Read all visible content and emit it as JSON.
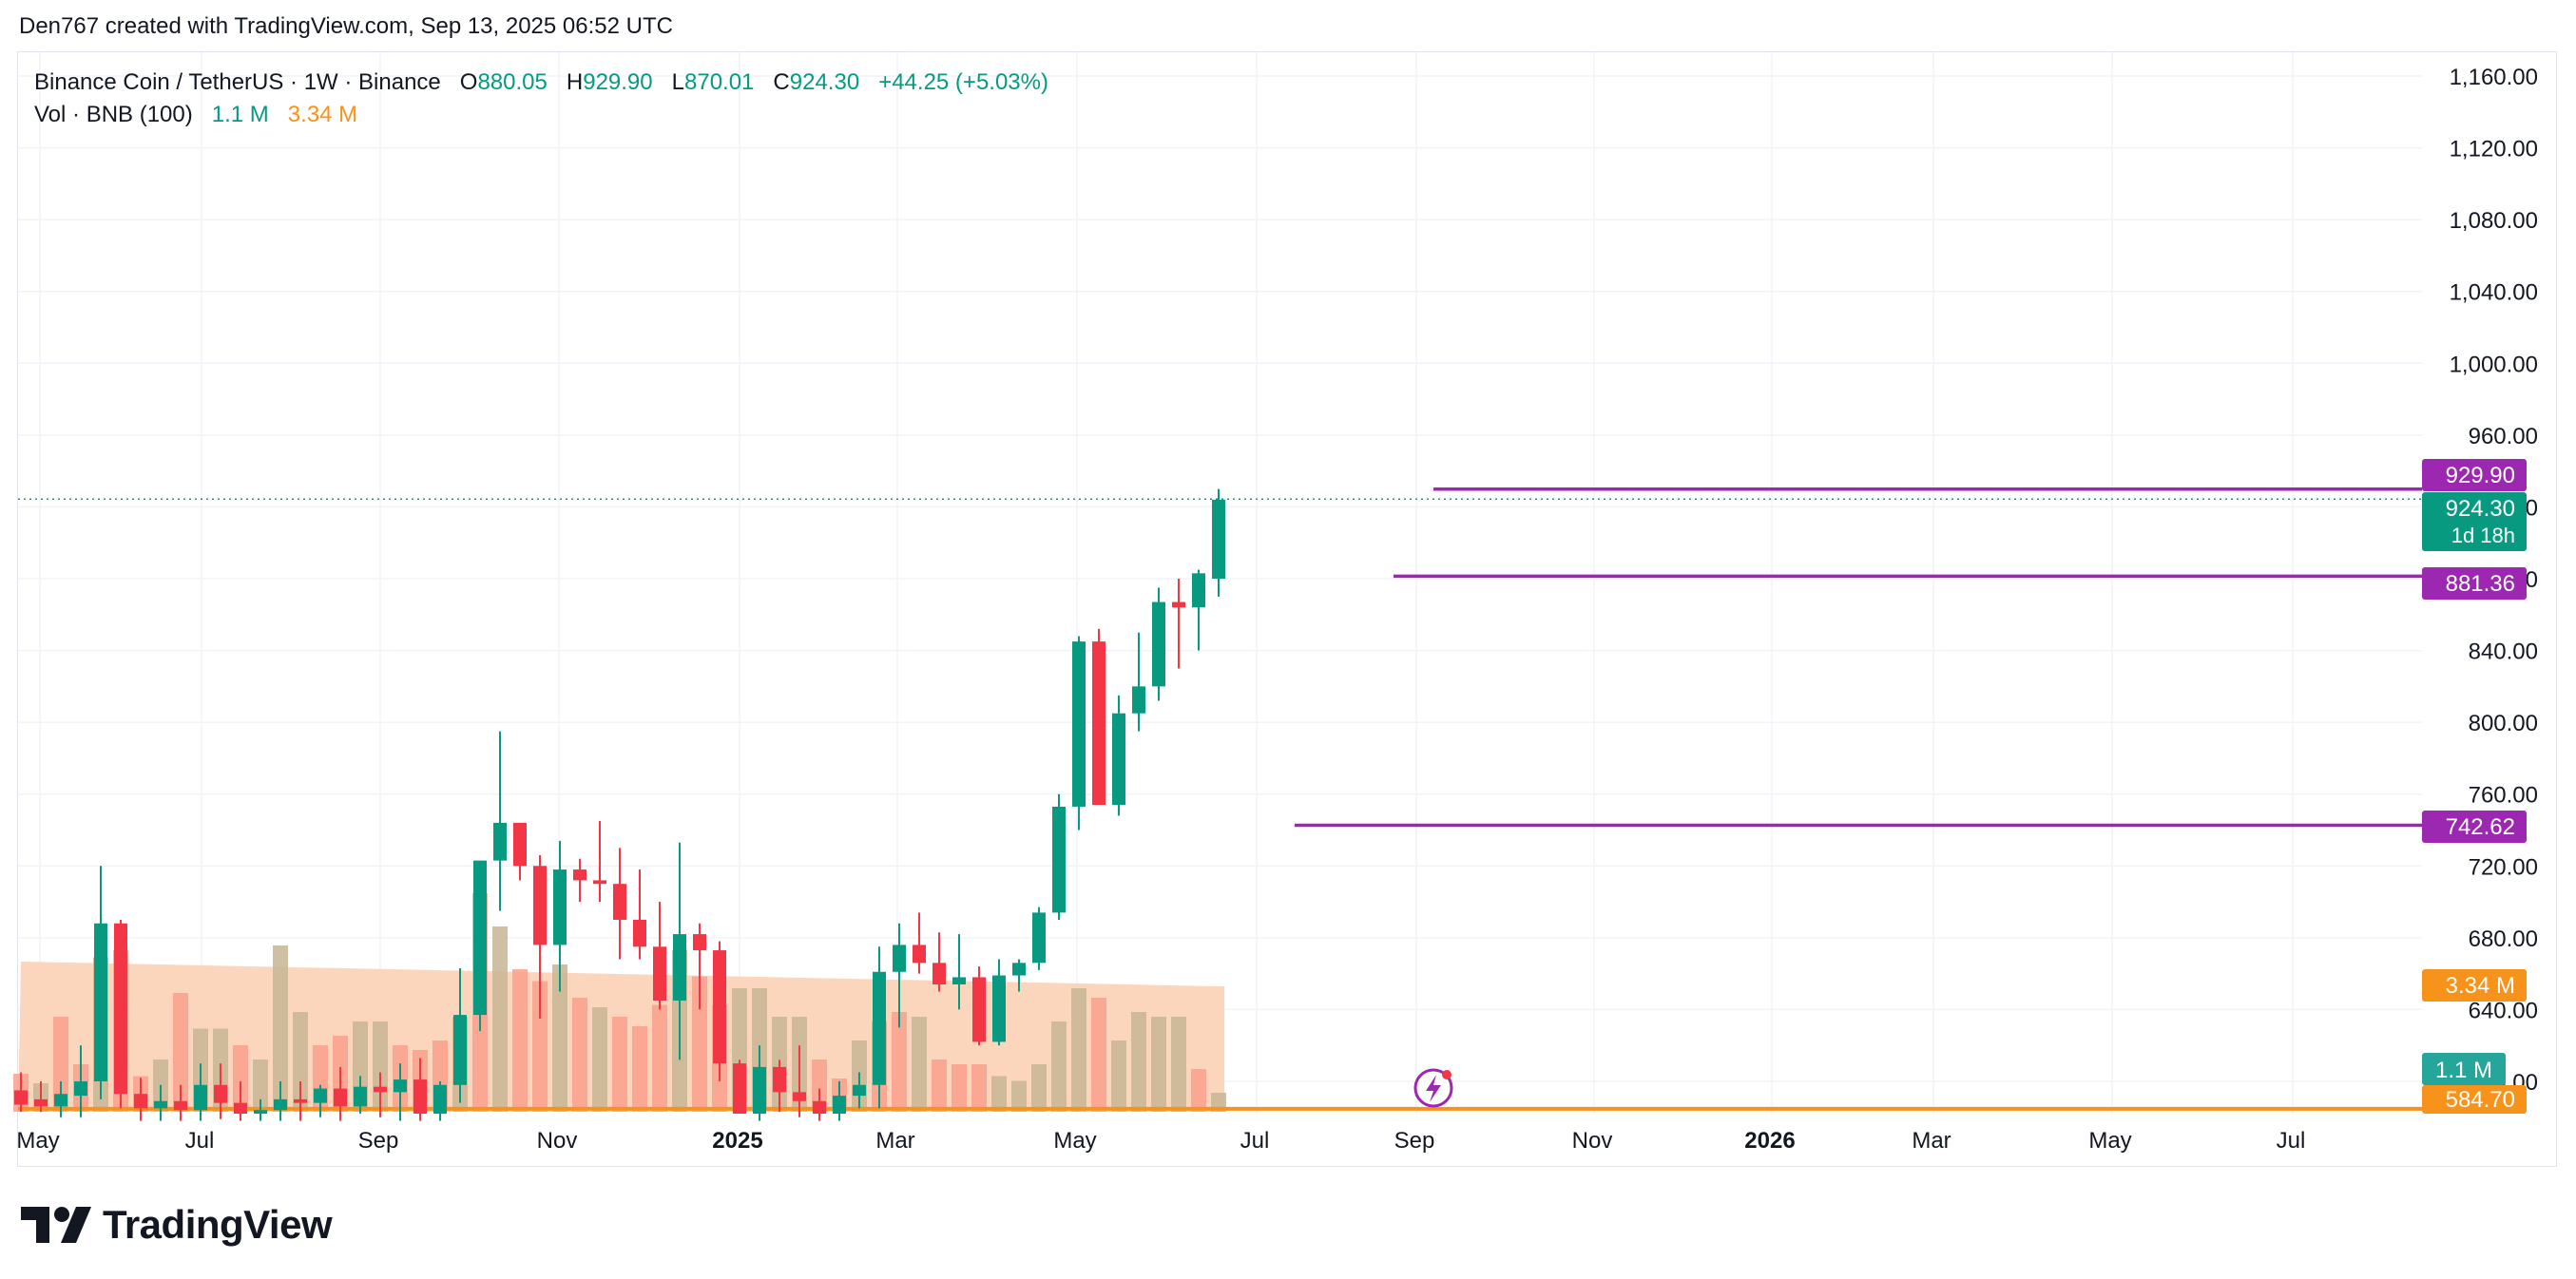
{
  "header": {
    "created_by": "Den767 created with TradingView.com, Sep 13, 2025 06:52 UTC"
  },
  "legend": {
    "symbol": "Binance Coin / TetherUS · 1W · Binance",
    "o_label": "O",
    "o_value": "880.05",
    "h_label": "H",
    "h_value": "929.90",
    "l_label": "L",
    "l_value": "870.01",
    "c_label": "C",
    "c_value": "924.30",
    "change": "+44.25 (+5.03%)",
    "vol_label": "Vol · BNB (100)",
    "vol_value": "1.1 M",
    "vol_ma_value": "3.34 M"
  },
  "brand": {
    "name": "TradingView"
  },
  "colors": {
    "up": "#089981",
    "down": "#f23645",
    "vol_up": "#c7b594",
    "vol_down": "#f9a08c",
    "vol_ma_fill": "#fbd2b6",
    "level_line": "#9c27b0",
    "support_line": "#f7931a",
    "last_price_tag": "#089981",
    "grid": "#f0f3fa",
    "axis_text": "#131722"
  },
  "chart_data": {
    "type": "candlestick",
    "title": "Binance Coin / TetherUS · 1W · Binance",
    "xlabel": "",
    "ylabel": "",
    "x_ticks": [
      "May",
      "Jul",
      "Sep",
      "Nov",
      "2025",
      "Mar",
      "May",
      "Jul",
      "Sep",
      "Nov",
      "2026",
      "Mar",
      "May",
      "Jul"
    ],
    "y_ticks": [
      "1,160.00",
      "1,120.00",
      "1,080.00",
      "1,040.00",
      "1,000.00",
      "960.00",
      "920.00",
      "880.00",
      "840.00",
      "800.00",
      "760.00",
      "720.00",
      "680.00",
      "640.00",
      "600.00"
    ],
    "ylim": [
      577,
      1168
    ],
    "grid": true,
    "series": [
      {
        "name": "BNB/USDT",
        "ohlc": [
          [
            595,
            605,
            583,
            587
          ],
          [
            590,
            600,
            583,
            586
          ],
          [
            586,
            600,
            580,
            593
          ],
          [
            592,
            620,
            580,
            600
          ],
          [
            600,
            720,
            590,
            688
          ],
          [
            688,
            690,
            585,
            593
          ],
          [
            593,
            602,
            578,
            585
          ],
          [
            585,
            598,
            578,
            589
          ],
          [
            589,
            598,
            578,
            584
          ],
          [
            584,
            610,
            578,
            598
          ],
          [
            598,
            610,
            579,
            588
          ],
          [
            588,
            600,
            578,
            582
          ],
          [
            582,
            590,
            578,
            584
          ],
          [
            584,
            600,
            578,
            590
          ],
          [
            590,
            600,
            578,
            588
          ],
          [
            588,
            598,
            580,
            596
          ],
          [
            596,
            608,
            578,
            586
          ],
          [
            586,
            603,
            582,
            597
          ],
          [
            597,
            605,
            580,
            594
          ],
          [
            594,
            610,
            578,
            601
          ],
          [
            601,
            613,
            578,
            582
          ],
          [
            582,
            600,
            578,
            598
          ],
          [
            598,
            663,
            588,
            637
          ],
          [
            637,
            720,
            628,
            723
          ],
          [
            723,
            795,
            695,
            744
          ],
          [
            744,
            744,
            712,
            720
          ],
          [
            720,
            726,
            635,
            676
          ],
          [
            676,
            734,
            650,
            718
          ],
          [
            718,
            724,
            700,
            712
          ],
          [
            712,
            745,
            700,
            710
          ],
          [
            710,
            730,
            668,
            690
          ],
          [
            690,
            718,
            668,
            675
          ],
          [
            675,
            700,
            640,
            645
          ],
          [
            645,
            733,
            612,
            682
          ],
          [
            682,
            688,
            640,
            673
          ],
          [
            673,
            678,
            600,
            610
          ],
          [
            610,
            612,
            585,
            582
          ],
          [
            582,
            620,
            578,
            608
          ],
          [
            608,
            612,
            583,
            594
          ],
          [
            594,
            620,
            580,
            589
          ],
          [
            589,
            596,
            578,
            582
          ],
          [
            582,
            600,
            578,
            592
          ],
          [
            592,
            605,
            585,
            598
          ],
          [
            598,
            675,
            585,
            661
          ],
          [
            661,
            688,
            630,
            676
          ],
          [
            676,
            694,
            660,
            666
          ],
          [
            666,
            683,
            650,
            654
          ],
          [
            654,
            682,
            640,
            658
          ],
          [
            658,
            664,
            620,
            622
          ],
          [
            622,
            668,
            620,
            659
          ],
          [
            659,
            668,
            650,
            666
          ],
          [
            666,
            697,
            662,
            694
          ],
          [
            694,
            760,
            690,
            753
          ],
          [
            753,
            848,
            740,
            845
          ],
          [
            845,
            852,
            755,
            754
          ],
          [
            754,
            815,
            748,
            805
          ],
          [
            805,
            850,
            795,
            820
          ],
          [
            820,
            875,
            812,
            867
          ],
          [
            867,
            880,
            830,
            864
          ],
          [
            864,
            885,
            840,
            883
          ],
          [
            880,
            930,
            870,
            924
          ]
        ],
        "volume": [
          [
            16,
            "d"
          ],
          [
            12,
            "u"
          ],
          [
            40,
            "d"
          ],
          [
            20,
            "d"
          ],
          [
            65,
            "u"
          ],
          [
            68,
            "d"
          ],
          [
            15,
            "d"
          ],
          [
            22,
            "u"
          ],
          [
            50,
            "d"
          ],
          [
            35,
            "u"
          ],
          [
            35,
            "u"
          ],
          [
            28,
            "d"
          ],
          [
            22,
            "u"
          ],
          [
            70,
            "u"
          ],
          [
            42,
            "u"
          ],
          [
            28,
            "d"
          ],
          [
            32,
            "d"
          ],
          [
            38,
            "u"
          ],
          [
            38,
            "u"
          ],
          [
            28,
            "d"
          ],
          [
            26,
            "d"
          ],
          [
            30,
            "d"
          ],
          [
            40,
            "u"
          ],
          [
            92,
            "d"
          ],
          [
            78,
            "u"
          ],
          [
            60,
            "d"
          ],
          [
            55,
            "d"
          ],
          [
            62,
            "u"
          ],
          [
            48,
            "d"
          ],
          [
            44,
            "u"
          ],
          [
            40,
            "d"
          ],
          [
            36,
            "d"
          ],
          [
            45,
            "d"
          ],
          [
            68,
            "u"
          ],
          [
            57,
            "d"
          ],
          [
            45,
            "d"
          ],
          [
            52,
            "u"
          ],
          [
            52,
            "u"
          ],
          [
            40,
            "u"
          ],
          [
            40,
            "u"
          ],
          [
            22,
            "d"
          ],
          [
            14,
            "d"
          ],
          [
            30,
            "u"
          ],
          [
            38,
            "d"
          ],
          [
            42,
            "d"
          ],
          [
            40,
            "u"
          ],
          [
            22,
            "d"
          ],
          [
            20,
            "d"
          ],
          [
            20,
            "d"
          ],
          [
            15,
            "u"
          ],
          [
            13,
            "u"
          ],
          [
            20,
            "u"
          ],
          [
            38,
            "u"
          ],
          [
            52,
            "u"
          ],
          [
            48,
            "d"
          ],
          [
            30,
            "u"
          ],
          [
            42,
            "u"
          ],
          [
            40,
            "u"
          ],
          [
            40,
            "u"
          ],
          [
            18,
            "d"
          ],
          [
            8,
            "u"
          ]
        ],
        "volume_ma": 3.34,
        "volume_last": 1.1,
        "volume_ma_unit": "M"
      }
    ],
    "horizontal_levels": [
      {
        "value": 929.9,
        "label": "929.90",
        "color": "#9c27b0"
      },
      {
        "value": 881.36,
        "label": "881.36",
        "color": "#9c27b0"
      },
      {
        "value": 742.62,
        "label": "742.62",
        "color": "#9c27b0"
      },
      {
        "value": 584.7,
        "label": "584.70",
        "color": "#f7931a"
      }
    ],
    "last_price": {
      "value": 924.3,
      "label": "924.30",
      "countdown": "1d 18h"
    },
    "volume_tags": [
      {
        "label": "3.34 M",
        "color": "#f7931a"
      },
      {
        "label": "1.1 M",
        "color": "#26a69a"
      }
    ]
  }
}
